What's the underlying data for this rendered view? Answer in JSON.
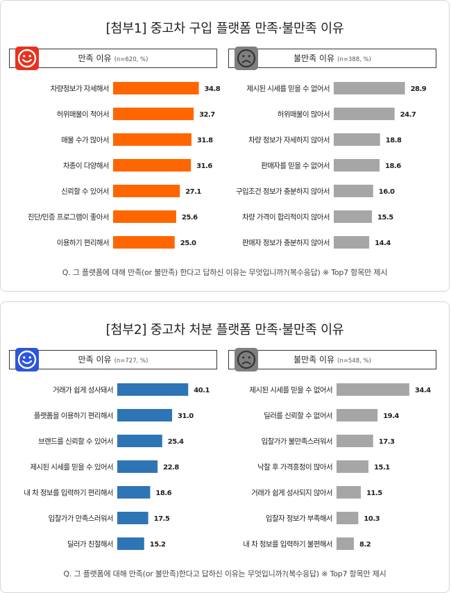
{
  "section1": {
    "title": "[첨부1] 중고차 구입 플랫폼 만족·불만족 이유",
    "left": {
      "title": "만족 이유",
      "sub": "(n=620, %)",
      "face": "smiley-face-icon",
      "face_color": "#e8321f"
    },
    "right": {
      "title": "불만족 이유",
      "sub": "(n=388, %)",
      "face": "sad-face-icon",
      "face_color": "#7f7f7f"
    },
    "note": "Q. 그 플랫폼에 대해 만족(or 불만족) 한다고 답하신 이유는 무엇입니까?(복수응답) ※ Top7 항목만 제시"
  },
  "section2": {
    "title": "[첨부2] 중고차 처분 플랫폼 만족·불만족 이유",
    "left": {
      "title": "만족 이유",
      "sub": "(n=727, %)",
      "face": "smiley-face-icon",
      "face_color": "#2d56d8"
    },
    "right": {
      "title": "불만족 이유",
      "sub": "(n=548, %)",
      "face": "sad-face-icon",
      "face_color": "#7f7f7f"
    },
    "note": "Q. 그 플랫폼에 대해 만족(or 불만족)한다고 답하신 이유는 무엇입니까?(복수응답) ※ Top7 항목만 제시"
  },
  "chart_data": [
    {
      "type": "bar",
      "orientation": "horizontal",
      "color": "#ff6600",
      "categories": [
        "차량정보가 자세해서",
        "허위매물이 적어서",
        "매물 수가 많아서",
        "차종이 다양해서",
        "신뢰할 수 있어서",
        "진단/인증 프로그램이 좋아서",
        "이용하기 편리해서"
      ],
      "values": [
        34.8,
        32.7,
        31.8,
        31.6,
        27.1,
        25.6,
        25.0
      ],
      "xlim": [
        0,
        45
      ]
    },
    {
      "type": "bar",
      "orientation": "horizontal",
      "color": "#a6a6a6",
      "categories": [
        "제시된 시세를 믿을 수 없어서",
        "허위매물이 많아서",
        "차량 정보가 자세하지 않아서",
        "판매자를 믿을 수 없어서",
        "구입조건 정보가 충분하지 않아서",
        "차량 가격이 합리적이지 않아서",
        "판매자 정보가 충분하지 않아서"
      ],
      "values": [
        28.9,
        24.7,
        18.8,
        18.6,
        16.0,
        15.5,
        14.4
      ],
      "xlim": [
        0,
        45
      ]
    },
    {
      "type": "bar",
      "orientation": "horizontal",
      "color": "#2e75b6",
      "categories": [
        "거래가 쉽게 성사돼서",
        "플랫폼을 이용하기 편리해서",
        "브랜드를 신뢰할 수 있어서",
        "제시된 시세를 믿을 수 있어서",
        "내 차 정보를 입력하기 편리해서",
        "입찰가가 만족스러워서",
        "딜러가 친절해서"
      ],
      "values": [
        40.1,
        31.0,
        25.4,
        22.8,
        18.6,
        17.5,
        15.2
      ],
      "xlim": [
        0,
        45
      ]
    },
    {
      "type": "bar",
      "orientation": "horizontal",
      "color": "#a6a6a6",
      "categories": [
        "제시된 시세를 믿을 수 없어서",
        "딜러를 신뢰할 수 없어서",
        "입찰가가 불만족스러워서",
        "낙찰 후 가격흥정이 많아서",
        "거래가 쉽게 성사되지 않아서",
        "입찰자 정보가 부족해서",
        "내 차 정보를 입력하기 불편해서"
      ],
      "values": [
        34.4,
        19.4,
        17.3,
        15.1,
        11.5,
        10.3,
        8.2
      ],
      "xlim": [
        0,
        45
      ]
    }
  ]
}
